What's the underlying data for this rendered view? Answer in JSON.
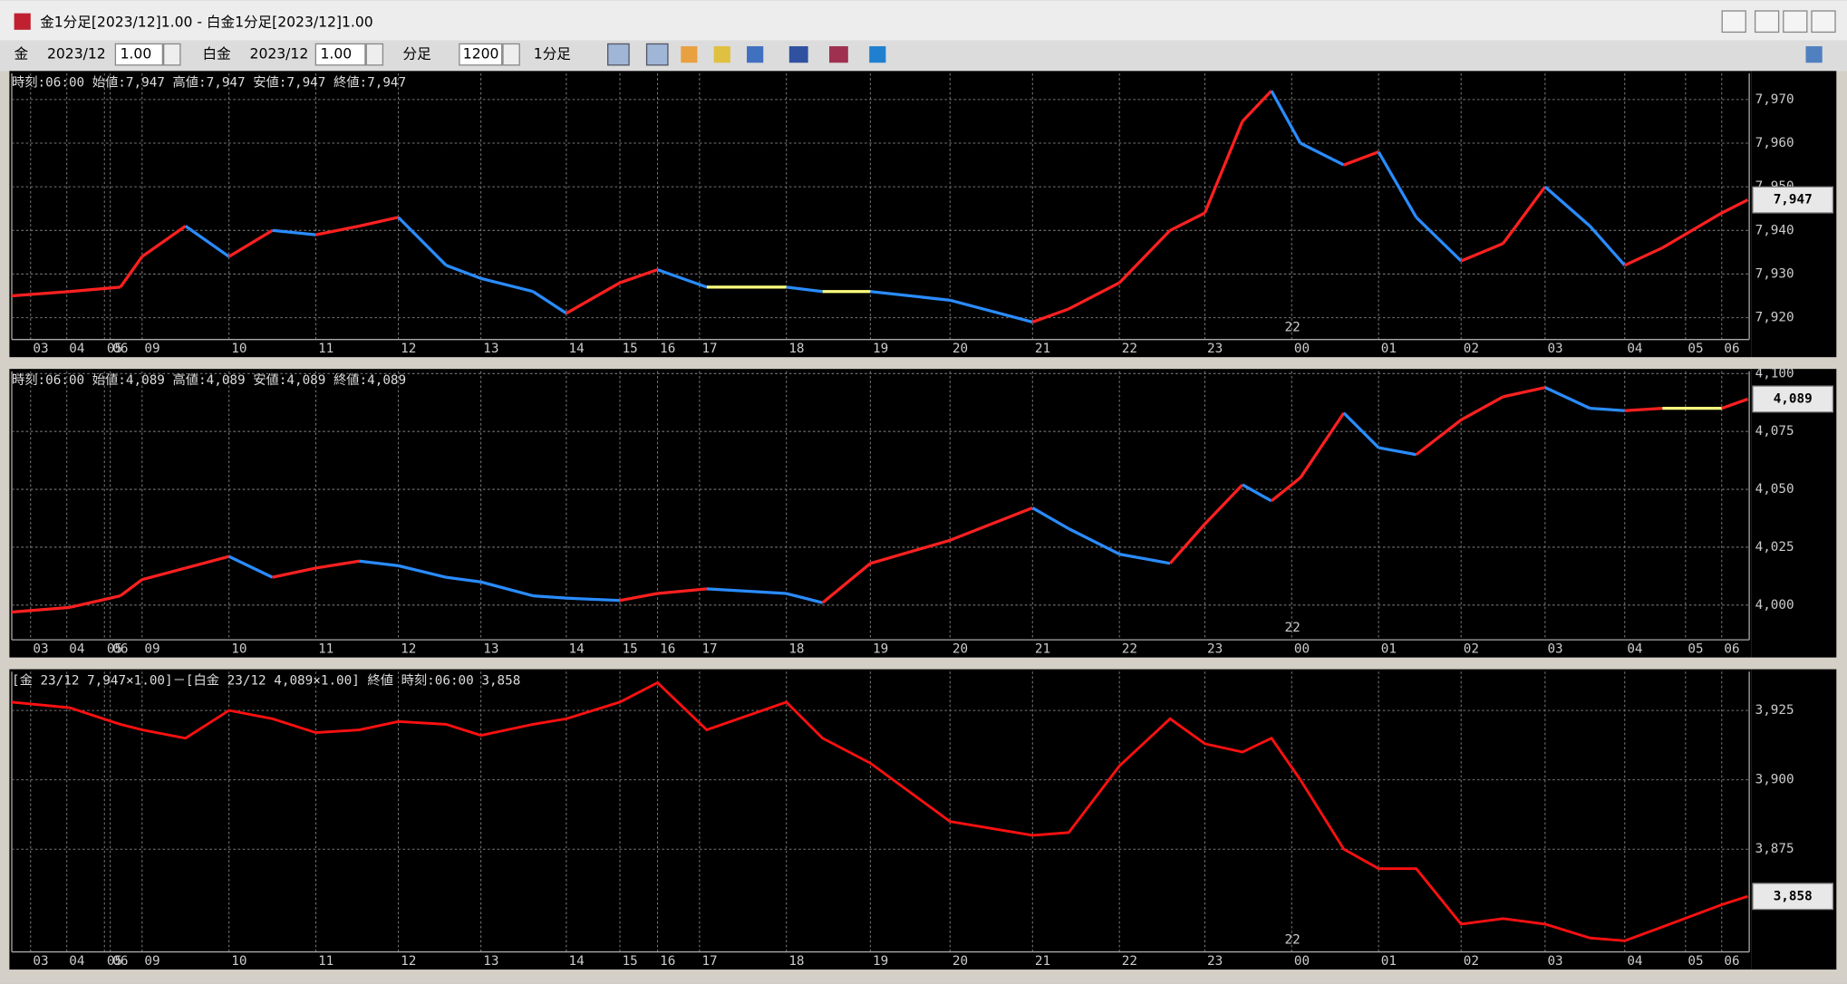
{
  "window": {
    "title": "金1分足[2023/12]1.00 - 白金1分足[2023/12]1.00"
  },
  "toolbar": {
    "symbol1": "金",
    "month1": "2023/12",
    "mult1": "1.00",
    "symbol2": "白金",
    "month2": "2023/12",
    "mult2": "1.00",
    "period_unit": "分足",
    "bars": "1200",
    "period": "1分足"
  },
  "panels": [
    {
      "type": "candle",
      "header": "時刻:06:00 始値:7,947 高値:7,947 安値:7,947 終値:7,947",
      "up_color": "#ff2020",
      "down_color": "#2a8cff",
      "flat_color": "#ffff80",
      "xlim": [
        0,
        1200
      ],
      "xticks": [
        {
          "value": 13,
          "label": "03"
        },
        {
          "value": 38,
          "label": "04"
        },
        {
          "value": 64,
          "label": "05"
        },
        {
          "value": 68,
          "label": "06"
        },
        {
          "value": 90,
          "label": "09"
        },
        {
          "value": 150,
          "label": "10"
        },
        {
          "value": 210,
          "label": "11"
        },
        {
          "value": 267,
          "label": "12"
        },
        {
          "value": 324,
          "label": "13"
        },
        {
          "value": 383,
          "label": "14"
        },
        {
          "value": 420,
          "label": "15"
        },
        {
          "value": 446,
          "label": "16"
        },
        {
          "value": 475,
          "label": "17"
        },
        {
          "value": 535,
          "label": "18"
        },
        {
          "value": 593,
          "label": "19"
        },
        {
          "value": 648,
          "label": "20"
        },
        {
          "value": 705,
          "label": "21"
        },
        {
          "value": 765,
          "label": "22"
        },
        {
          "value": 824,
          "label": "23"
        },
        {
          "value": 884,
          "label": "00"
        },
        {
          "value": 944,
          "label": "01"
        },
        {
          "value": 1001,
          "label": "02"
        },
        {
          "value": 1059,
          "label": "03"
        },
        {
          "value": 1114,
          "label": "04"
        },
        {
          "value": 1156,
          "label": "05"
        },
        {
          "value": 1181,
          "label": "06"
        }
      ],
      "date_marker": {
        "value": 884,
        "label": "22"
      },
      "ylim": [
        7915,
        7976
      ],
      "yticks": [
        {
          "value": 7920,
          "label": "7,920"
        },
        {
          "value": 7930,
          "label": "7,930"
        },
        {
          "value": 7940,
          "label": "7,940"
        },
        {
          "value": 7950,
          "label": "7,950"
        },
        {
          "value": 7960,
          "label": "7,960"
        },
        {
          "value": 7970,
          "label": "7,970"
        }
      ],
      "last": {
        "value": 7947,
        "label": "7,947"
      },
      "x": [
        0,
        40,
        75,
        90,
        120,
        150,
        180,
        210,
        240,
        267,
        300,
        324,
        360,
        383,
        420,
        446,
        480,
        535,
        560,
        593,
        648,
        705,
        730,
        765,
        800,
        824,
        850,
        870,
        890,
        920,
        944,
        970,
        1001,
        1030,
        1059,
        1090,
        1114,
        1140,
        1181,
        1199
      ],
      "values": [
        7925,
        7926,
        7927,
        7934,
        7941,
        7934,
        7940,
        7939,
        7941,
        7943,
        7932,
        7929,
        7926,
        7921,
        7928,
        7931,
        7927,
        7927,
        7926,
        7926,
        7924,
        7919,
        7922,
        7928,
        7940,
        7944,
        7965,
        7972,
        7960,
        7955,
        7958,
        7943,
        7933,
        7937,
        7950,
        7941,
        7932,
        7936,
        7944,
        7947
      ]
    },
    {
      "type": "candle",
      "header": "時刻:06:00 始値:4,089 高値:4,089 安値:4,089 終値:4,089",
      "up_color": "#ff2020",
      "down_color": "#2a8cff",
      "flat_color": "#ffff80",
      "xlim": [
        0,
        1200
      ],
      "xticks": [
        {
          "value": 13,
          "label": "03"
        },
        {
          "value": 38,
          "label": "04"
        },
        {
          "value": 64,
          "label": "05"
        },
        {
          "value": 68,
          "label": "06"
        },
        {
          "value": 90,
          "label": "09"
        },
        {
          "value": 150,
          "label": "10"
        },
        {
          "value": 210,
          "label": "11"
        },
        {
          "value": 267,
          "label": "12"
        },
        {
          "value": 324,
          "label": "13"
        },
        {
          "value": 383,
          "label": "14"
        },
        {
          "value": 420,
          "label": "15"
        },
        {
          "value": 446,
          "label": "16"
        },
        {
          "value": 475,
          "label": "17"
        },
        {
          "value": 535,
          "label": "18"
        },
        {
          "value": 593,
          "label": "19"
        },
        {
          "value": 648,
          "label": "20"
        },
        {
          "value": 705,
          "label": "21"
        },
        {
          "value": 765,
          "label": "22"
        },
        {
          "value": 824,
          "label": "23"
        },
        {
          "value": 884,
          "label": "00"
        },
        {
          "value": 944,
          "label": "01"
        },
        {
          "value": 1001,
          "label": "02"
        },
        {
          "value": 1059,
          "label": "03"
        },
        {
          "value": 1114,
          "label": "04"
        },
        {
          "value": 1156,
          "label": "05"
        },
        {
          "value": 1181,
          "label": "06"
        }
      ],
      "date_marker": {
        "value": 884,
        "label": "22"
      },
      "ylim": [
        3985,
        4101
      ],
      "yticks": [
        {
          "value": 4000,
          "label": "4,000"
        },
        {
          "value": 4025,
          "label": "4,025"
        },
        {
          "value": 4050,
          "label": "4,050"
        },
        {
          "value": 4075,
          "label": "4,075"
        },
        {
          "value": 4100,
          "label": "4,100"
        }
      ],
      "last": {
        "value": 4089,
        "label": "4,089"
      },
      "x": [
        0,
        40,
        75,
        90,
        120,
        150,
        180,
        210,
        240,
        267,
        300,
        324,
        360,
        383,
        420,
        446,
        480,
        535,
        560,
        593,
        648,
        705,
        730,
        765,
        800,
        824,
        850,
        870,
        890,
        920,
        944,
        970,
        1001,
        1030,
        1059,
        1090,
        1114,
        1140,
        1181,
        1199
      ],
      "values": [
        3997,
        3999,
        4004,
        4011,
        4016,
        4021,
        4012,
        4016,
        4019,
        4017,
        4012,
        4010,
        4004,
        4003,
        4002,
        4005,
        4007,
        4005,
        4001,
        4018,
        4028,
        4042,
        4033,
        4022,
        4018,
        4035,
        4052,
        4045,
        4055,
        4083,
        4068,
        4065,
        4080,
        4090,
        4094,
        4085,
        4084,
        4085,
        4085,
        4089
      ]
    },
    {
      "type": "line",
      "header": "[金 23/12 7,947×1.00]－[白金 23/12 4,089×1.00] 終値 時刻:06:00 3,858",
      "color": "#ff1010",
      "xlim": [
        0,
        1200
      ],
      "xticks": [
        {
          "value": 13,
          "label": "03"
        },
        {
          "value": 38,
          "label": "04"
        },
        {
          "value": 64,
          "label": "05"
        },
        {
          "value": 68,
          "label": "06"
        },
        {
          "value": 90,
          "label": "09"
        },
        {
          "value": 150,
          "label": "10"
        },
        {
          "value": 210,
          "label": "11"
        },
        {
          "value": 267,
          "label": "12"
        },
        {
          "value": 324,
          "label": "13"
        },
        {
          "value": 383,
          "label": "14"
        },
        {
          "value": 420,
          "label": "15"
        },
        {
          "value": 446,
          "label": "16"
        },
        {
          "value": 475,
          "label": "17"
        },
        {
          "value": 535,
          "label": "18"
        },
        {
          "value": 593,
          "label": "19"
        },
        {
          "value": 648,
          "label": "20"
        },
        {
          "value": 705,
          "label": "21"
        },
        {
          "value": 765,
          "label": "22"
        },
        {
          "value": 824,
          "label": "23"
        },
        {
          "value": 884,
          "label": "00"
        },
        {
          "value": 944,
          "label": "01"
        },
        {
          "value": 1001,
          "label": "02"
        },
        {
          "value": 1059,
          "label": "03"
        },
        {
          "value": 1114,
          "label": "04"
        },
        {
          "value": 1156,
          "label": "05"
        },
        {
          "value": 1181,
          "label": "06"
        }
      ],
      "date_marker": {
        "value": 884,
        "label": "22"
      },
      "ylim": [
        3838,
        3939
      ],
      "yticks": [
        {
          "value": 3875,
          "label": "3,875"
        },
        {
          "value": 3900,
          "label": "3,900"
        },
        {
          "value": 3925,
          "label": "3,925"
        }
      ],
      "last": {
        "value": 3858,
        "label": "3,858"
      },
      "x": [
        0,
        40,
        75,
        90,
        120,
        150,
        180,
        210,
        240,
        267,
        300,
        324,
        360,
        383,
        420,
        446,
        480,
        535,
        560,
        593,
        648,
        705,
        730,
        765,
        800,
        824,
        850,
        870,
        890,
        920,
        944,
        970,
        1001,
        1030,
        1059,
        1090,
        1114,
        1140,
        1181,
        1199
      ],
      "values": [
        3928,
        3926,
        3920,
        3918,
        3915,
        3925,
        3922,
        3917,
        3918,
        3921,
        3920,
        3916,
        3920,
        3922,
        3928,
        3935,
        3918,
        3928,
        3915,
        3906,
        3885,
        3880,
        3881,
        3905,
        3922,
        3913,
        3910,
        3915,
        3900,
        3875,
        3868,
        3868,
        3848,
        3850,
        3848,
        3843,
        3842,
        3847,
        3855,
        3858
      ]
    }
  ]
}
